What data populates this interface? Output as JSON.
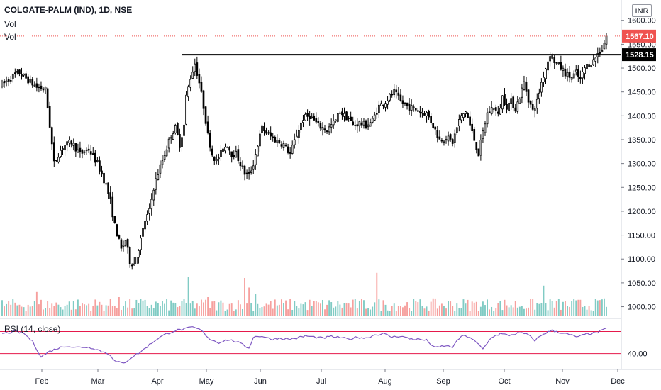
{
  "header": {
    "symbol_line": "COLGATE-PALM (IND), 1D, NSE",
    "vol_label_1": "Vol",
    "vol_label_2": "Vol",
    "currency": "INR"
  },
  "rsi": {
    "label": "RSI (14, close)",
    "level_label": "40.00",
    "upper_band": 70,
    "lower_band": 30
  },
  "price_labels": {
    "last": "1567.10",
    "resistance": "1528.15"
  },
  "colors": {
    "up": "#26a69a",
    "down": "#ef5350",
    "vol_up": "#80cbc4",
    "vol_down": "#f6a09e",
    "band": "#e5194b",
    "rsi_line": "#7e57c2",
    "last_price_bg": "#ef5350",
    "resistance_bg": "#000000"
  },
  "chart_data": {
    "type": "candlestick",
    "title": "COLGATE-PALM (IND), 1D, NSE",
    "ylim": [
      980,
      1610
    ],
    "y_ticks": [
      "1600.00",
      "1550.00",
      "1500.00",
      "1450.00",
      "1400.00",
      "1350.00",
      "1300.00",
      "1250.00",
      "1200.00",
      "1150.00",
      "1100.00",
      "1050.00",
      "1000.00"
    ],
    "x_ticks": [
      "Feb",
      "Mar",
      "Apr",
      "May",
      "Jun",
      "Jul",
      "Aug",
      "Sep",
      "Oct",
      "Nov",
      "Dec"
    ],
    "last_price": 1567.1,
    "resistance_level": 1528.15,
    "price_anchors": [
      [
        0,
        1465
      ],
      [
        4,
        1480
      ],
      [
        8,
        1490
      ],
      [
        12,
        1475
      ],
      [
        16,
        1460
      ],
      [
        20,
        1455
      ],
      [
        22,
        1380
      ],
      [
        24,
        1300
      ],
      [
        26,
        1320
      ],
      [
        28,
        1335
      ],
      [
        32,
        1345
      ],
      [
        36,
        1320
      ],
      [
        40,
        1330
      ],
      [
        44,
        1300
      ],
      [
        48,
        1255
      ],
      [
        50,
        1220
      ],
      [
        52,
        1170
      ],
      [
        55,
        1120
      ],
      [
        57,
        1140
      ],
      [
        59,
        1095
      ],
      [
        61,
        1090
      ],
      [
        64,
        1140
      ],
      [
        66,
        1180
      ],
      [
        68,
        1200
      ],
      [
        70,
        1250
      ],
      [
        72,
        1280
      ],
      [
        75,
        1320
      ],
      [
        78,
        1360
      ],
      [
        80,
        1375
      ],
      [
        82,
        1340
      ],
      [
        84,
        1380
      ],
      [
        85,
        1440
      ],
      [
        87,
        1480
      ],
      [
        89,
        1510
      ],
      [
        91,
        1470
      ],
      [
        93,
        1420
      ],
      [
        95,
        1360
      ],
      [
        97,
        1320
      ],
      [
        99,
        1305
      ],
      [
        102,
        1330
      ],
      [
        104,
        1340
      ],
      [
        106,
        1320
      ],
      [
        108,
        1320
      ],
      [
        110,
        1300
      ],
      [
        112,
        1280
      ],
      [
        114,
        1275
      ],
      [
        116,
        1300
      ],
      [
        118,
        1340
      ],
      [
        120,
        1375
      ],
      [
        123,
        1360
      ],
      [
        126,
        1350
      ],
      [
        130,
        1340
      ],
      [
        133,
        1320
      ],
      [
        136,
        1360
      ],
      [
        139,
        1395
      ],
      [
        142,
        1400
      ],
      [
        146,
        1380
      ],
      [
        150,
        1370
      ],
      [
        154,
        1390
      ],
      [
        156,
        1410
      ],
      [
        158,
        1400
      ],
      [
        160,
        1395
      ],
      [
        162,
        1380
      ],
      [
        165,
        1385
      ],
      [
        168,
        1380
      ],
      [
        171,
        1390
      ],
      [
        174,
        1420
      ],
      [
        177,
        1430
      ],
      [
        179,
        1440
      ],
      [
        181,
        1450
      ],
      [
        184,
        1430
      ],
      [
        187,
        1420
      ],
      [
        190,
        1415
      ],
      [
        193,
        1410
      ],
      [
        196,
        1405
      ],
      [
        199,
        1380
      ],
      [
        202,
        1350
      ],
      [
        205,
        1355
      ],
      [
        208,
        1345
      ],
      [
        211,
        1390
      ],
      [
        214,
        1410
      ],
      [
        216,
        1380
      ],
      [
        218,
        1350
      ],
      [
        220,
        1320
      ],
      [
        222,
        1365
      ],
      [
        224,
        1405
      ],
      [
        227,
        1420
      ],
      [
        229,
        1400
      ],
      [
        231,
        1440
      ],
      [
        233,
        1420
      ],
      [
        235,
        1430
      ],
      [
        237,
        1415
      ],
      [
        239,
        1440
      ],
      [
        241,
        1470
      ],
      [
        243,
        1435
      ],
      [
        245,
        1410
      ],
      [
        247,
        1430
      ],
      [
        249,
        1470
      ],
      [
        251,
        1500
      ],
      [
        253,
        1530
      ],
      [
        255,
        1515
      ],
      [
        257,
        1505
      ],
      [
        259,
        1495
      ],
      [
        261,
        1485
      ],
      [
        263,
        1480
      ],
      [
        265,
        1490
      ],
      [
        267,
        1475
      ],
      [
        269,
        1500
      ],
      [
        271,
        1510
      ],
      [
        273,
        1515
      ],
      [
        275,
        1530
      ],
      [
        277,
        1540
      ],
      [
        279,
        1567.1
      ]
    ],
    "volume_scale": [
      0,
      100
    ],
    "volume_bursts": [
      [
        16,
        38
      ],
      [
        54,
        30
      ],
      [
        86,
        62
      ],
      [
        95,
        30
      ],
      [
        112,
        60
      ],
      [
        114,
        45
      ],
      [
        117,
        35
      ],
      [
        173,
        68
      ],
      [
        250,
        48
      ],
      [
        278,
        28
      ]
    ],
    "rsi_anchors": [
      [
        0,
        66
      ],
      [
        6,
        70
      ],
      [
        10,
        67
      ],
      [
        14,
        52
      ],
      [
        18,
        24
      ],
      [
        22,
        34
      ],
      [
        26,
        40
      ],
      [
        30,
        44
      ],
      [
        34,
        41
      ],
      [
        38,
        42
      ],
      [
        42,
        40
      ],
      [
        46,
        34
      ],
      [
        50,
        28
      ],
      [
        52,
        16
      ],
      [
        56,
        12
      ],
      [
        60,
        24
      ],
      [
        64,
        33
      ],
      [
        68,
        46
      ],
      [
        72,
        58
      ],
      [
        76,
        66
      ],
      [
        80,
        72
      ],
      [
        84,
        74
      ],
      [
        88,
        78
      ],
      [
        92,
        72
      ],
      [
        96,
        56
      ],
      [
        100,
        50
      ],
      [
        104,
        55
      ],
      [
        108,
        52
      ],
      [
        112,
        44
      ],
      [
        114,
        40
      ],
      [
        116,
        60
      ],
      [
        120,
        62
      ],
      [
        124,
        56
      ],
      [
        128,
        58
      ],
      [
        132,
        56
      ],
      [
        136,
        58
      ],
      [
        140,
        62
      ],
      [
        144,
        60
      ],
      [
        148,
        58
      ],
      [
        152,
        61
      ],
      [
        156,
        59
      ],
      [
        160,
        56
      ],
      [
        164,
        60
      ],
      [
        168,
        58
      ],
      [
        172,
        64
      ],
      [
        176,
        66
      ],
      [
        180,
        60
      ],
      [
        184,
        62
      ],
      [
        188,
        57
      ],
      [
        192,
        56
      ],
      [
        196,
        54
      ],
      [
        200,
        40
      ],
      [
        204,
        44
      ],
      [
        208,
        42
      ],
      [
        212,
        62
      ],
      [
        216,
        60
      ],
      [
        220,
        46
      ],
      [
        222,
        38
      ],
      [
        226,
        60
      ],
      [
        230,
        66
      ],
      [
        234,
        63
      ],
      [
        238,
        67
      ],
      [
        242,
        66
      ],
      [
        246,
        54
      ],
      [
        250,
        66
      ],
      [
        254,
        72
      ],
      [
        258,
        68
      ],
      [
        262,
        64
      ],
      [
        266,
        60
      ],
      [
        270,
        66
      ],
      [
        274,
        67
      ],
      [
        279,
        75
      ]
    ]
  }
}
